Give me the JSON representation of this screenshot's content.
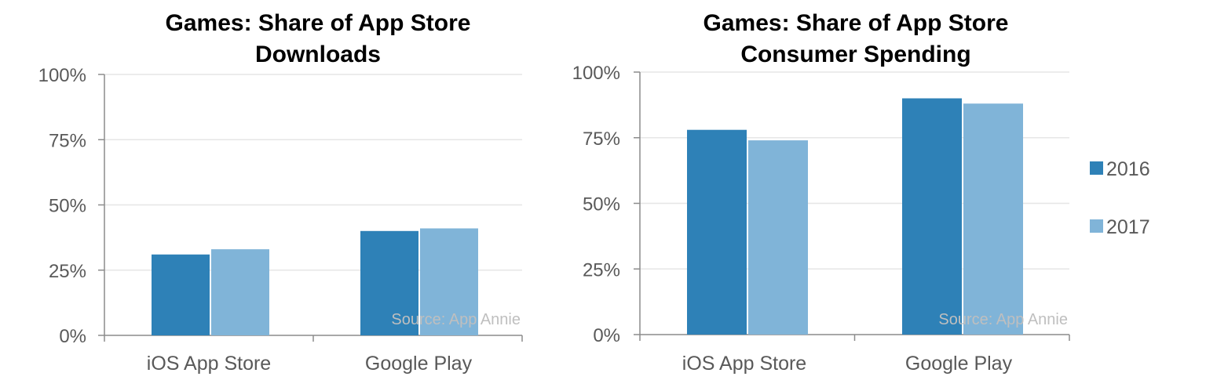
{
  "colors": {
    "series_2016": "#2e81b7",
    "series_2017": "#80b4d8",
    "grid": "#e6e6e6",
    "axis": "#8c8c8c",
    "tick_text": "#595959",
    "source_text": "#bfbfbf"
  },
  "legend": {
    "placement": "right",
    "items": [
      "2016",
      "2017"
    ]
  },
  "chart_data": [
    {
      "type": "bar",
      "title": [
        "Games: Share of App Store",
        "Downloads"
      ],
      "categories": [
        "iOS App Store",
        "Google Play"
      ],
      "series": [
        {
          "name": "2016",
          "values": [
            31,
            40
          ]
        },
        {
          "name": "2017",
          "values": [
            33,
            41
          ]
        }
      ],
      "ylim": [
        0,
        100
      ],
      "yticks": [
        "0%",
        "25%",
        "50%",
        "75%",
        "100%"
      ],
      "grid": true,
      "annotation": "Source: App Annie"
    },
    {
      "type": "bar",
      "title": [
        "Games: Share of App Store",
        "Consumer Spending"
      ],
      "categories": [
        "iOS App Store",
        "Google Play"
      ],
      "series": [
        {
          "name": "2016",
          "values": [
            78,
            90
          ]
        },
        {
          "name": "2017",
          "values": [
            74,
            88
          ]
        }
      ],
      "ylim": [
        0,
        100
      ],
      "yticks": [
        "0%",
        "25%",
        "50%",
        "75%",
        "100%"
      ],
      "grid": true,
      "annotation": "Source: App Annie"
    }
  ]
}
